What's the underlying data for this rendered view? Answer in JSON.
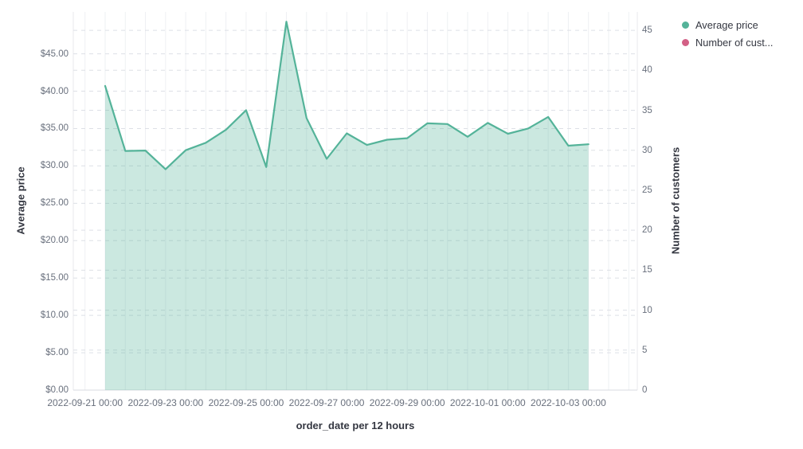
{
  "legend": {
    "items": [
      {
        "label": "Average price",
        "color": "#54B399"
      },
      {
        "label": "Number of cust...",
        "color": "#D36086"
      }
    ]
  },
  "chart_data": {
    "type": "area",
    "title": "",
    "xlabel": "order_date per 12 hours",
    "ylabel_left": "Average price",
    "ylabel_right": "Number of customers",
    "grid": true,
    "legend_position": "top-right",
    "x_tick_labels": [
      "2022-09-21 00:00",
      "2022-09-23 00:00",
      "2022-09-25 00:00",
      "2022-09-27 00:00",
      "2022-09-29 00:00",
      "2022-10-01 00:00",
      "2022-10-03 00:00"
    ],
    "y_left_tick_labels": [
      "$0.00",
      "$5.00",
      "$10.00",
      "$15.00",
      "$20.00",
      "$25.00",
      "$30.00",
      "$35.00",
      "$40.00",
      "$45.00"
    ],
    "y_right_tick_labels": [
      "0",
      "5",
      "10",
      "15",
      "20",
      "25",
      "30",
      "35",
      "40",
      "45"
    ],
    "y_left_range": [
      0,
      50.6
    ],
    "y_right_range": [
      0,
      47.3
    ],
    "x_interval": "12h",
    "series": [
      {
        "name": "Average price",
        "axis": "left",
        "color": "#54B399",
        "fill_opacity": 0.3,
        "x": [
          "2022-09-21 12:00",
          "2022-09-22 00:00",
          "2022-09-22 12:00",
          "2022-09-23 00:00",
          "2022-09-23 12:00",
          "2022-09-24 00:00",
          "2022-09-24 12:00",
          "2022-09-25 00:00",
          "2022-09-25 12:00",
          "2022-09-26 00:00",
          "2022-09-26 12:00",
          "2022-09-27 00:00",
          "2022-09-27 12:00",
          "2022-09-28 00:00",
          "2022-09-28 12:00",
          "2022-09-29 00:00",
          "2022-09-29 12:00",
          "2022-09-30 00:00",
          "2022-09-30 12:00",
          "2022-10-01 00:00",
          "2022-10-01 12:00",
          "2022-10-02 00:00",
          "2022-10-02 12:00",
          "2022-10-03 00:00",
          "2022-10-03 12:00"
        ],
        "values": [
          40.7,
          32.0,
          32.05,
          29.55,
          32.1,
          33.1,
          34.85,
          37.45,
          29.85,
          49.3,
          36.4,
          30.95,
          34.35,
          32.8,
          33.5,
          33.7,
          35.7,
          35.6,
          33.9,
          35.75,
          34.3,
          35.0,
          36.55,
          32.7,
          32.9
        ]
      },
      {
        "name": "Number of cust...",
        "axis": "right",
        "color": "#D36086",
        "x": [],
        "values": []
      }
    ]
  }
}
